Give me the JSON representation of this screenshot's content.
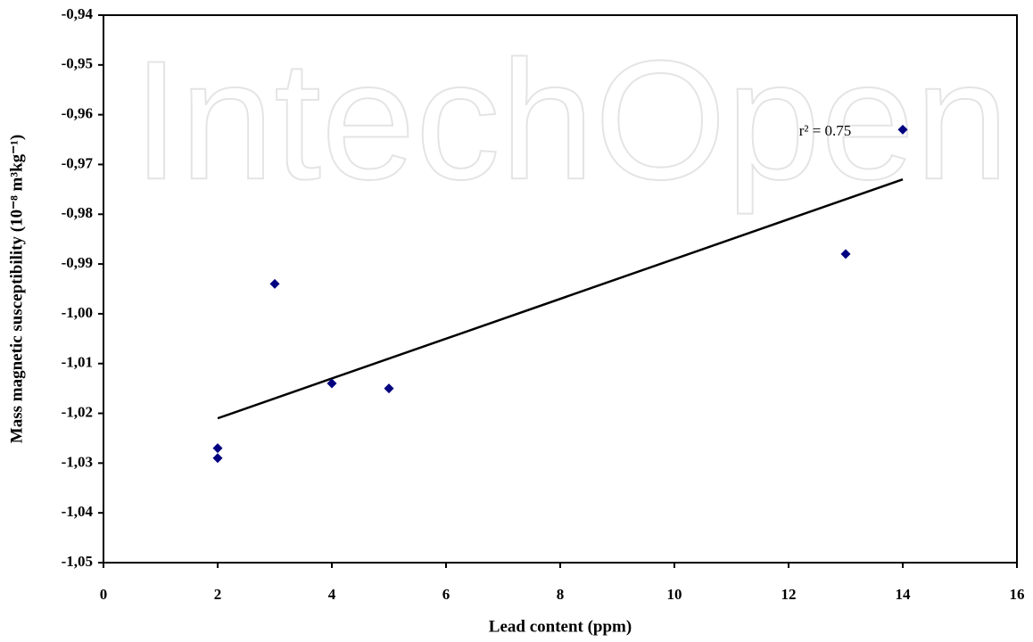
{
  "chart_data": {
    "type": "scatter",
    "x_label": "Lead content (ppm)",
    "y_label": "Mass magnetic susceptibility (10⁻⁸ m³kg⁻¹)",
    "x": [
      2,
      2,
      3,
      4,
      5,
      13,
      14
    ],
    "values": [
      -1.027,
      -1.029,
      -0.994,
      -1.014,
      -1.015,
      -0.988,
      -0.963
    ],
    "color": "#000080",
    "trendline": {
      "x": [
        2,
        14
      ],
      "values": [
        -1.021,
        -0.973
      ],
      "color": "#000000"
    },
    "annotation": "r² = 0.75",
    "watermark": "IntechOpen",
    "xlim": [
      0,
      16
    ],
    "xticks": [
      0,
      2,
      4,
      6,
      8,
      10,
      12,
      14,
      16
    ],
    "ylim": [
      -1.05,
      -0.94
    ],
    "yticks": [
      {
        "value": -1.05,
        "label": "-1,05"
      },
      {
        "value": -1.04,
        "label": "-1,04"
      },
      {
        "value": -1.03,
        "label": "-1,03"
      },
      {
        "value": -1.02,
        "label": "-1,02"
      },
      {
        "value": -1.01,
        "label": "-1,01"
      },
      {
        "value": -1.0,
        "label": "-1,00"
      },
      {
        "value": -0.99,
        "label": "-0,99"
      },
      {
        "value": -0.98,
        "label": "-0,98"
      },
      {
        "value": -0.97,
        "label": "-0,97"
      },
      {
        "value": -0.96,
        "label": "-0,96"
      },
      {
        "value": -0.95,
        "label": "-0,95"
      },
      {
        "value": -0.94,
        "label": "-0,94"
      }
    ],
    "grid": false
  }
}
